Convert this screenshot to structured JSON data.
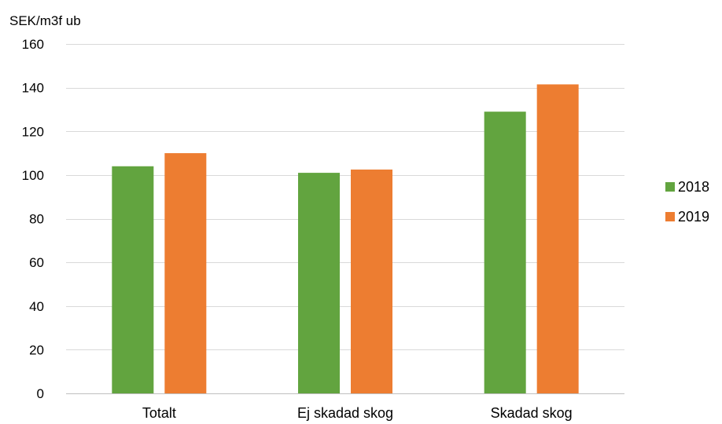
{
  "chart_data": {
    "type": "bar",
    "ylabel": "SEK/m3f ub",
    "categories": [
      "Totalt",
      "Ej skadad skog",
      "Skadad skog"
    ],
    "series": [
      {
        "name": "2018",
        "values": [
          104,
          101,
          129
        ],
        "color": "#62a43f"
      },
      {
        "name": "2019",
        "values": [
          110,
          102.5,
          141.5
        ],
        "color": "#ed7d31"
      }
    ],
    "ylim": [
      0,
      160
    ],
    "yticks": [
      0,
      20,
      40,
      60,
      80,
      100,
      120,
      140,
      160
    ],
    "grid": true,
    "legend": "right"
  }
}
